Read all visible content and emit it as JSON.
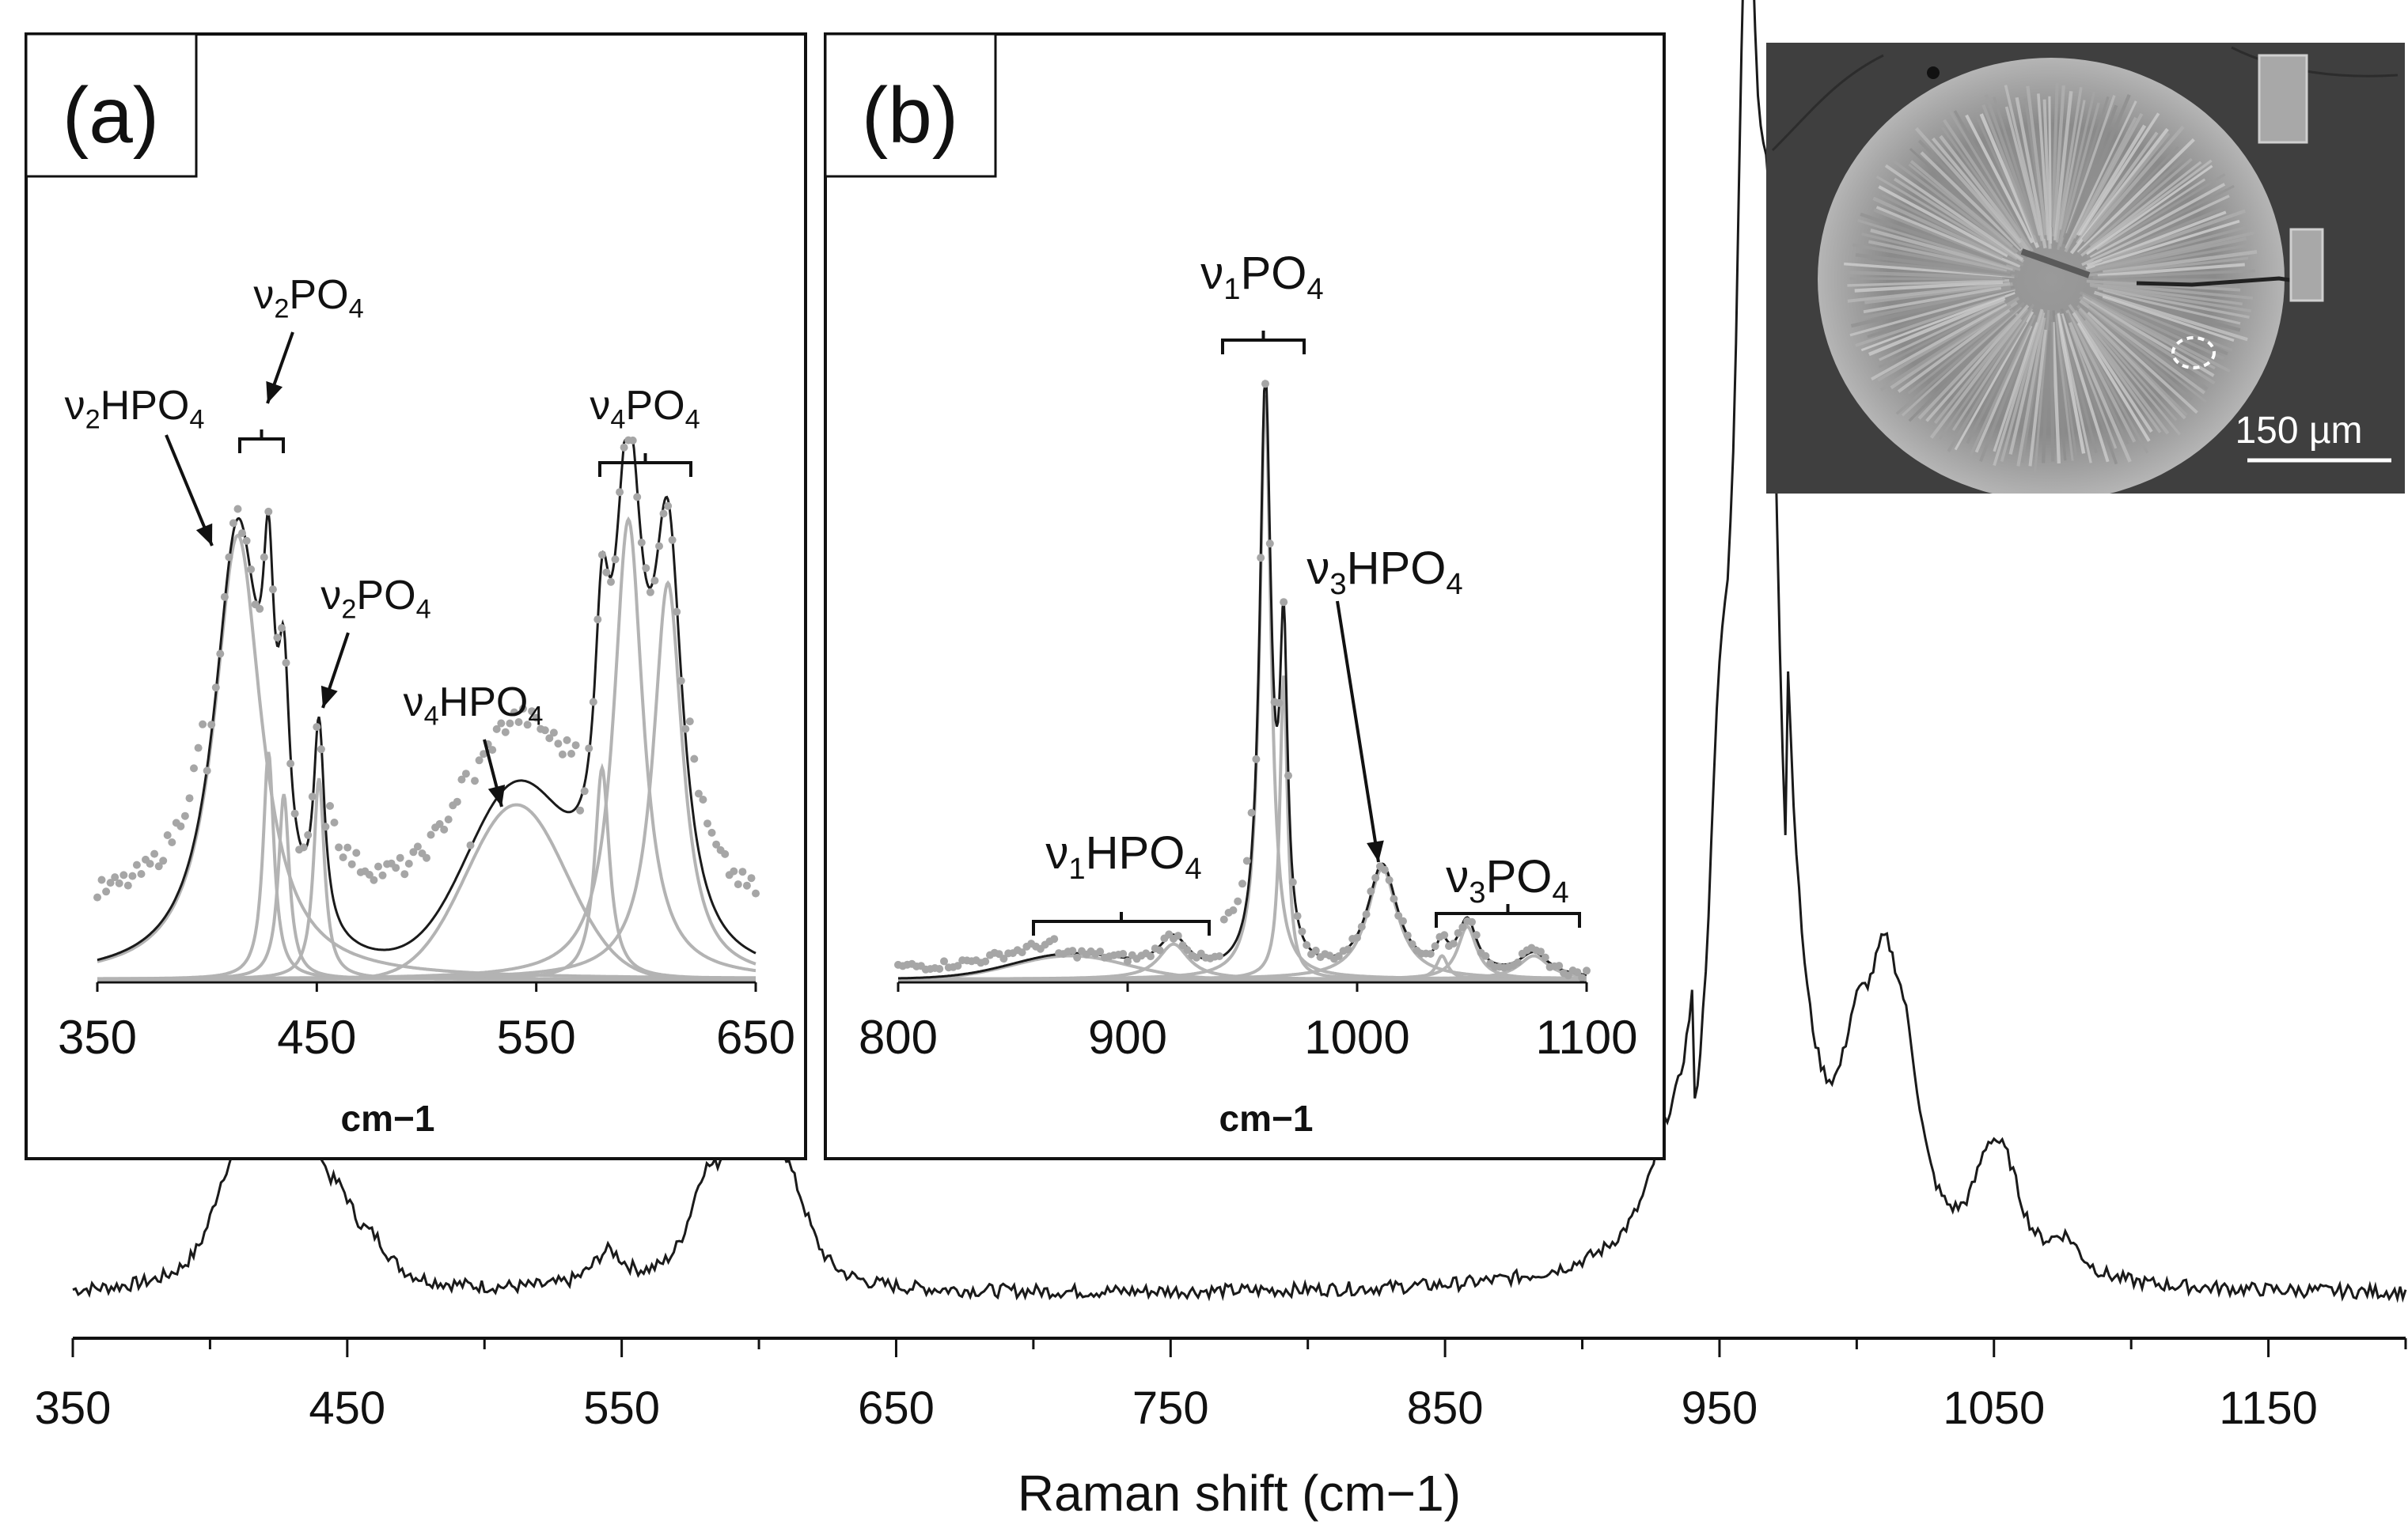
{
  "chart_data": [
    {
      "type": "line",
      "id": "main",
      "xlabel": "Raman shift (cm−1)",
      "xlim": [
        350,
        1200
      ],
      "xticks": [
        "350",
        "450",
        "550",
        "650",
        "750",
        "850",
        "950",
        "1050",
        "1150"
      ],
      "y_axis": "none",
      "series": [
        {
          "style": "black line",
          "peaks": [
            {
              "x": 405,
              "y": 0.05
            },
            {
              "x": 415,
              "y": 0.083
            },
            {
              "x": 422,
              "y": 0.09
            },
            {
              "x": 428,
              "y": 0.106
            },
            {
              "x": 436,
              "y": 0.075
            },
            {
              "x": 448,
              "y": 0.045
            },
            {
              "x": 460,
              "y": 0.023
            },
            {
              "x": 545,
              "y": 0.03
            },
            {
              "x": 580,
              "y": 0.07
            },
            {
              "x": 592,
              "y": 0.097
            },
            {
              "x": 600,
              "y": 0.06
            },
            {
              "x": 608,
              "y": 0.068
            },
            {
              "x": 615,
              "y": 0.03
            },
            {
              "x": 930,
              "y": 0.04
            },
            {
              "x": 950,
              "y": 0.3
            },
            {
              "x": 960,
              "y": 1.0
            },
            {
              "x": 968,
              "y": 0.65
            },
            {
              "x": 1000,
              "y": 0.12
            },
            {
              "x": 1010,
              "y": 0.175
            },
            {
              "x": 1018,
              "y": 0.12
            },
            {
              "x": 1048,
              "y": 0.075
            },
            {
              "x": 1055,
              "y": 0.06
            },
            {
              "x": 1076,
              "y": 0.03
            }
          ]
        }
      ]
    },
    {
      "type": "line",
      "id": "inset-a",
      "panel_label": "(a)",
      "xlabel": "cm−1",
      "xlim": [
        350,
        650
      ],
      "xticks": [
        "350",
        "450",
        "550",
        "650"
      ],
      "series": [
        {
          "style": "grey dots (measured)"
        },
        {
          "style": "black line (fit envelope)"
        },
        {
          "style": "grey lines (fitted components)",
          "components": [
            {
              "center": 414,
              "height": 0.84,
              "width": 13
            },
            {
              "center": 428,
              "height": 0.43,
              "width": 3
            },
            {
              "center": 435,
              "height": 0.35,
              "width": 3
            },
            {
              "center": 451,
              "height": 0.38,
              "width": 3
            },
            {
              "center": 541,
              "height": 0.33,
              "width": 38
            },
            {
              "center": 580,
              "height": 0.4,
              "width": 4
            },
            {
              "center": 592,
              "height": 0.87,
              "width": 8
            },
            {
              "center": 610,
              "height": 0.75,
              "width": 8
            }
          ]
        }
      ],
      "annotations": [
        {
          "base": "ν",
          "sub": "2",
          "text": "HPO",
          "sub2": "4"
        },
        {
          "base": "ν",
          "sub": "2",
          "text": "PO",
          "sub2": "4"
        },
        {
          "base": "ν",
          "sub": "2",
          "text": "PO",
          "sub2": "4"
        },
        {
          "base": "ν",
          "sub": "4",
          "text": "HPO",
          "sub2": "4"
        },
        {
          "base": "ν",
          "sub": "4",
          "text": "PO",
          "sub2": "4"
        }
      ]
    },
    {
      "type": "line",
      "id": "inset-b",
      "panel_label": "(b)",
      "xlabel": "cm−1",
      "xlim": [
        800,
        1100
      ],
      "xticks": [
        "800",
        "900",
        "1000",
        "1100"
      ],
      "series": [
        {
          "style": "grey dots (measured)"
        },
        {
          "style": "black line (fit envelope)"
        },
        {
          "style": "grey lines (fitted components)",
          "components": [
            {
              "center": 875,
              "height": 0.04,
              "width": 25
            },
            {
              "center": 920,
              "height": 0.06,
              "width": 8
            },
            {
              "center": 960,
              "height": 1.0,
              "width": 3
            },
            {
              "center": 968,
              "height": 0.52,
              "width": 2
            },
            {
              "center": 1011,
              "height": 0.19,
              "width": 8
            },
            {
              "center": 1037,
              "height": 0.04,
              "width": 3
            },
            {
              "center": 1048,
              "height": 0.09,
              "width": 5
            },
            {
              "center": 1077,
              "height": 0.04,
              "width": 8
            }
          ]
        }
      ],
      "annotations": [
        {
          "base": "ν",
          "sub": "1",
          "text": "PO",
          "sub2": "4"
        },
        {
          "base": "ν",
          "sub": "3",
          "text": "HPO",
          "sub2": "4"
        },
        {
          "base": "ν",
          "sub": "1",
          "text": "HPO",
          "sub2": "4"
        },
        {
          "base": "ν",
          "sub": "3",
          "text": "PO",
          "sub2": "4"
        }
      ]
    }
  ],
  "micrograph": {
    "scale_label": "150 µm"
  },
  "colors": {
    "line": "#1a1a1a",
    "component": "#b3b3b3",
    "dots": "#a6a6a6",
    "micrograph_bg": "#3f3f3f"
  }
}
